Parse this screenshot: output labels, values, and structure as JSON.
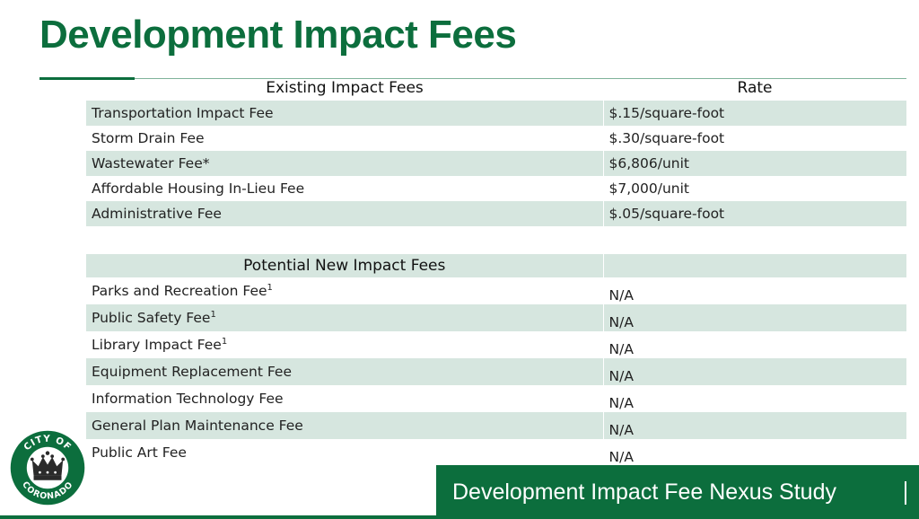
{
  "slide": {
    "title": "Development Impact Fees",
    "footer": "Development Impact Fee Nexus Study",
    "logo": {
      "top_text": "CITY OF",
      "bottom_text": "CORONADO",
      "icon": "crown-icon"
    }
  },
  "existing": {
    "header_name": "Existing Impact Fees",
    "header_rate": "Rate",
    "rows": [
      {
        "name": "Transportation Impact Fee",
        "rate": "$.15/square-foot"
      },
      {
        "name": "Storm Drain Fee",
        "rate": "$.30/square-foot"
      },
      {
        "name": "Wastewater Fee*",
        "rate": "$6,806/unit"
      },
      {
        "name": "Affordable Housing In-Lieu Fee",
        "rate": "$7,000/unit"
      },
      {
        "name": "Administrative Fee",
        "rate": "$.05/square-foot"
      }
    ]
  },
  "potential": {
    "header_name": "Potential New Impact Fees",
    "rows": [
      {
        "name": "Parks and Recreation Fee",
        "sup": "1",
        "rate": "N/A"
      },
      {
        "name": "Public Safety Fee",
        "sup": "1",
        "rate": "N/A"
      },
      {
        "name": "Library Impact Fee",
        "sup": "1",
        "rate": "N/A"
      },
      {
        "name": "Equipment Replacement Fee",
        "sup": "",
        "rate": "N/A"
      },
      {
        "name": "Information Technology Fee",
        "sup": "",
        "rate": "N/A"
      },
      {
        "name": "General Plan Maintenance Fee",
        "sup": "",
        "rate": "N/A"
      },
      {
        "name": "Public Art Fee",
        "sup": "",
        "rate": "N/A"
      }
    ]
  },
  "colors": {
    "brand_green": "#0c6e3d",
    "band": "#d6e6df"
  }
}
